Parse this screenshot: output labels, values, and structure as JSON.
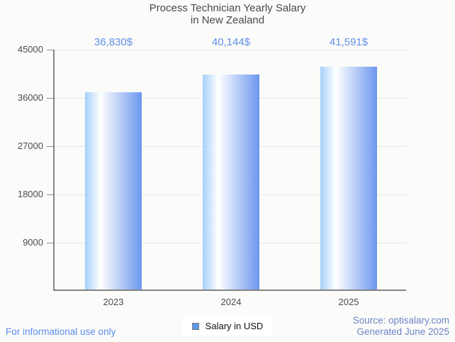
{
  "title": {
    "line1": "Process Technician Yearly Salary",
    "line2": "in New Zealand"
  },
  "chart_data": {
    "type": "bar",
    "title": "Process Technician Yearly Salary in New Zealand",
    "categories": [
      "2023",
      "2024",
      "2025"
    ],
    "values": [
      36830,
      40144,
      41591
    ],
    "value_labels": [
      "36,830$",
      "40,144$",
      "41,591$"
    ],
    "series_name": "Salary in USD",
    "xlabel": "",
    "ylabel": "",
    "ylim": [
      0,
      45000
    ],
    "yticks": [
      9000,
      18000,
      27000,
      36000,
      45000
    ],
    "grid": "horizontal",
    "legend_position": "bottom"
  },
  "legend": {
    "label": "Salary in USD"
  },
  "footer": {
    "left": "For informational use only",
    "source_line1": "Source: optisalary.com",
    "source_line2": "Generated June 2025"
  },
  "colors": {
    "background": "#fbfbf9",
    "title_text": "#4a4a4a",
    "axis_line": "#858585",
    "gridline": "#e5e5e5",
    "tick_text": "#4d4d4d",
    "value_label_text": "#6190ea",
    "bar_gradient_left": "#a6cff9",
    "bar_gradient_mid": "#ffffff",
    "bar_gradient_right": "#6c97ee",
    "legend_marker_fill": "#5d97e9",
    "legend_marker_border": "#7a7a7a",
    "footer_left_text": "#5c8deb",
    "source_text": "#6d85c6"
  }
}
